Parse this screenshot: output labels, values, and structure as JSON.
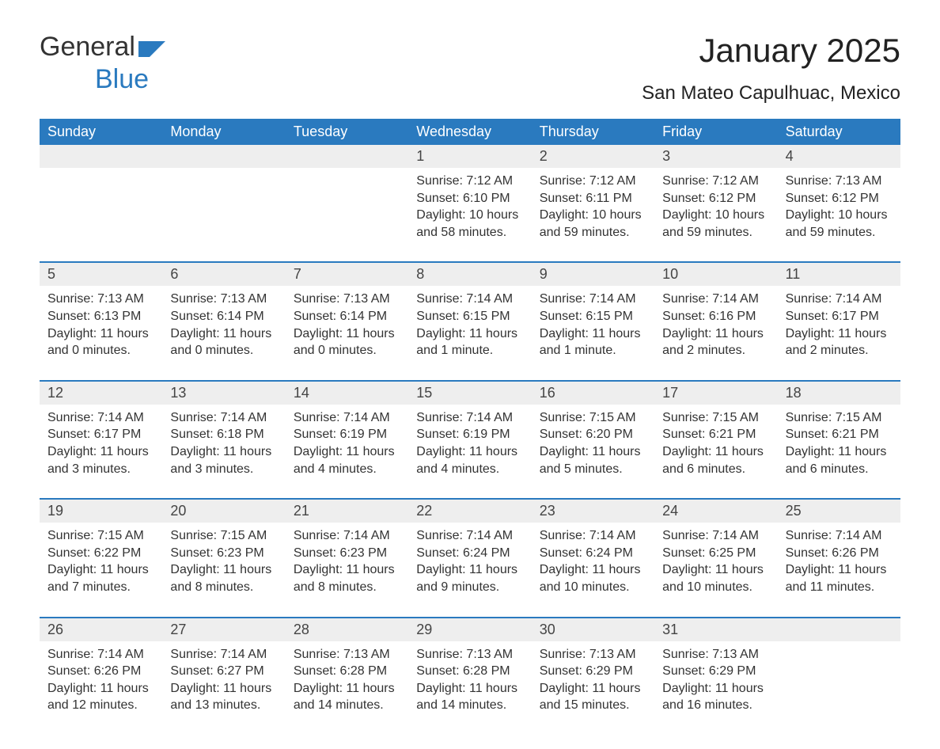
{
  "brand": {
    "name_part1": "General",
    "name_part2": "Blue",
    "accent": "#2a7abf"
  },
  "title": "January 2025",
  "location": "San Mateo Capulhuac, Mexico",
  "weekday_labels": [
    "Sunday",
    "Monday",
    "Tuesday",
    "Wednesday",
    "Thursday",
    "Friday",
    "Saturday"
  ],
  "colors": {
    "header_bg": "#2a7abf",
    "header_text": "#ffffff",
    "daynum_bg": "#eeeeee",
    "week_divider": "#2a7abf",
    "page_bg": "#ffffff",
    "body_text": "#333333"
  },
  "typography": {
    "title_fontsize": 42,
    "location_fontsize": 24,
    "weekday_fontsize": 18,
    "daynum_fontsize": 18,
    "body_fontsize": 16
  },
  "layout": {
    "columns": 7,
    "rows": 5,
    "leading_blanks": 3,
    "trailing_blanks": 1
  },
  "days": [
    {
      "n": 1,
      "sunrise": "7:12 AM",
      "sunset": "6:10 PM",
      "daylight": "10 hours and 58 minutes."
    },
    {
      "n": 2,
      "sunrise": "7:12 AM",
      "sunset": "6:11 PM",
      "daylight": "10 hours and 59 minutes."
    },
    {
      "n": 3,
      "sunrise": "7:12 AM",
      "sunset": "6:12 PM",
      "daylight": "10 hours and 59 minutes."
    },
    {
      "n": 4,
      "sunrise": "7:13 AM",
      "sunset": "6:12 PM",
      "daylight": "10 hours and 59 minutes."
    },
    {
      "n": 5,
      "sunrise": "7:13 AM",
      "sunset": "6:13 PM",
      "daylight": "11 hours and 0 minutes."
    },
    {
      "n": 6,
      "sunrise": "7:13 AM",
      "sunset": "6:14 PM",
      "daylight": "11 hours and 0 minutes."
    },
    {
      "n": 7,
      "sunrise": "7:13 AM",
      "sunset": "6:14 PM",
      "daylight": "11 hours and 0 minutes."
    },
    {
      "n": 8,
      "sunrise": "7:14 AM",
      "sunset": "6:15 PM",
      "daylight": "11 hours and 1 minute."
    },
    {
      "n": 9,
      "sunrise": "7:14 AM",
      "sunset": "6:15 PM",
      "daylight": "11 hours and 1 minute."
    },
    {
      "n": 10,
      "sunrise": "7:14 AM",
      "sunset": "6:16 PM",
      "daylight": "11 hours and 2 minutes."
    },
    {
      "n": 11,
      "sunrise": "7:14 AM",
      "sunset": "6:17 PM",
      "daylight": "11 hours and 2 minutes."
    },
    {
      "n": 12,
      "sunrise": "7:14 AM",
      "sunset": "6:17 PM",
      "daylight": "11 hours and 3 minutes."
    },
    {
      "n": 13,
      "sunrise": "7:14 AM",
      "sunset": "6:18 PM",
      "daylight": "11 hours and 3 minutes."
    },
    {
      "n": 14,
      "sunrise": "7:14 AM",
      "sunset": "6:19 PM",
      "daylight": "11 hours and 4 minutes."
    },
    {
      "n": 15,
      "sunrise": "7:14 AM",
      "sunset": "6:19 PM",
      "daylight": "11 hours and 4 minutes."
    },
    {
      "n": 16,
      "sunrise": "7:15 AM",
      "sunset": "6:20 PM",
      "daylight": "11 hours and 5 minutes."
    },
    {
      "n": 17,
      "sunrise": "7:15 AM",
      "sunset": "6:21 PM",
      "daylight": "11 hours and 6 minutes."
    },
    {
      "n": 18,
      "sunrise": "7:15 AM",
      "sunset": "6:21 PM",
      "daylight": "11 hours and 6 minutes."
    },
    {
      "n": 19,
      "sunrise": "7:15 AM",
      "sunset": "6:22 PM",
      "daylight": "11 hours and 7 minutes."
    },
    {
      "n": 20,
      "sunrise": "7:15 AM",
      "sunset": "6:23 PM",
      "daylight": "11 hours and 8 minutes."
    },
    {
      "n": 21,
      "sunrise": "7:14 AM",
      "sunset": "6:23 PM",
      "daylight": "11 hours and 8 minutes."
    },
    {
      "n": 22,
      "sunrise": "7:14 AM",
      "sunset": "6:24 PM",
      "daylight": "11 hours and 9 minutes."
    },
    {
      "n": 23,
      "sunrise": "7:14 AM",
      "sunset": "6:24 PM",
      "daylight": "11 hours and 10 minutes."
    },
    {
      "n": 24,
      "sunrise": "7:14 AM",
      "sunset": "6:25 PM",
      "daylight": "11 hours and 10 minutes."
    },
    {
      "n": 25,
      "sunrise": "7:14 AM",
      "sunset": "6:26 PM",
      "daylight": "11 hours and 11 minutes."
    },
    {
      "n": 26,
      "sunrise": "7:14 AM",
      "sunset": "6:26 PM",
      "daylight": "11 hours and 12 minutes."
    },
    {
      "n": 27,
      "sunrise": "7:14 AM",
      "sunset": "6:27 PM",
      "daylight": "11 hours and 13 minutes."
    },
    {
      "n": 28,
      "sunrise": "7:13 AM",
      "sunset": "6:28 PM",
      "daylight": "11 hours and 14 minutes."
    },
    {
      "n": 29,
      "sunrise": "7:13 AM",
      "sunset": "6:28 PM",
      "daylight": "11 hours and 14 minutes."
    },
    {
      "n": 30,
      "sunrise": "7:13 AM",
      "sunset": "6:29 PM",
      "daylight": "11 hours and 15 minutes."
    },
    {
      "n": 31,
      "sunrise": "7:13 AM",
      "sunset": "6:29 PM",
      "daylight": "11 hours and 16 minutes."
    }
  ],
  "labels": {
    "sunrise": "Sunrise: ",
    "sunset": "Sunset: ",
    "daylight": "Daylight: "
  }
}
